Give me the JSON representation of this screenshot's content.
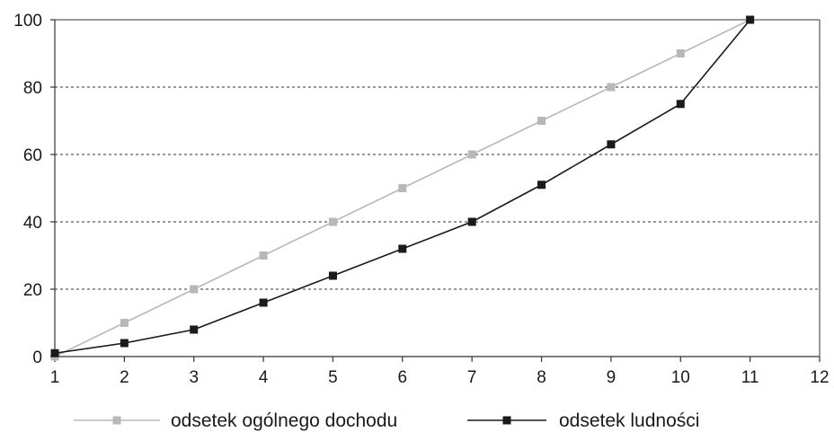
{
  "chart_data": {
    "type": "line",
    "title": "",
    "xlabel": "",
    "ylabel": "",
    "x": [
      1,
      2,
      3,
      4,
      5,
      6,
      7,
      8,
      9,
      10,
      11
    ],
    "xlim": [
      1,
      12
    ],
    "ylim": [
      0,
      100
    ],
    "xticks": [
      "1",
      "2",
      "3",
      "4",
      "5",
      "6",
      "7",
      "8",
      "9",
      "10",
      "11",
      "12"
    ],
    "yticks": [
      "0",
      "20",
      "40",
      "60",
      "80",
      "100"
    ],
    "grid": "horizontal dashed",
    "legend_position": "bottom",
    "series": [
      {
        "name": "odsetek ogólnego dochodu",
        "color": "#b8b8b8",
        "marker": "square",
        "values": [
          0,
          10,
          20,
          30,
          40,
          50,
          60,
          70,
          80,
          90,
          100
        ]
      },
      {
        "name": "odsetek ludności",
        "color": "#1a1a1a",
        "marker": "square",
        "values": [
          1,
          4,
          8,
          16,
          24,
          32,
          40,
          51,
          63,
          75,
          100
        ]
      }
    ]
  }
}
